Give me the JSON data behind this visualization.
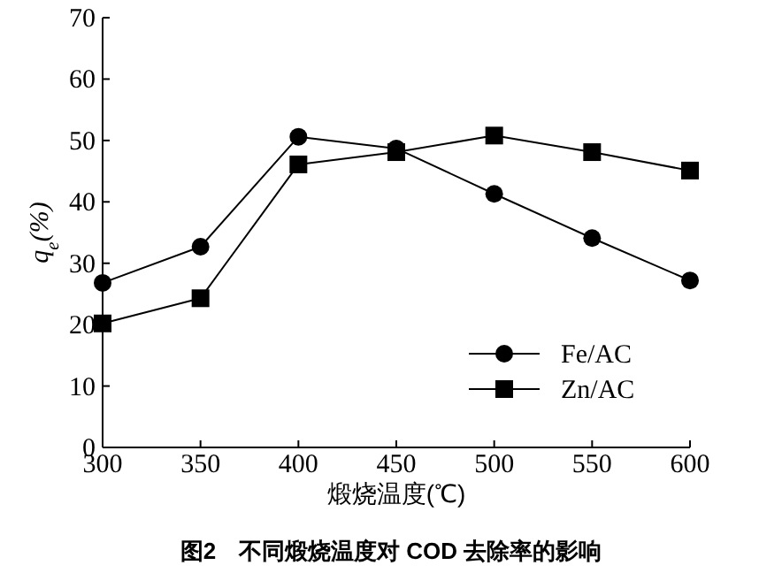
{
  "chart_data": {
    "type": "line",
    "xlabel": "煅烧温度(℃)",
    "ylabel": "q$_{e}$(%)",
    "annotations": [
      "图2　不同煅烧温度对 COD 去除率的影响"
    ],
    "x": [
      300,
      350,
      400,
      450,
      500,
      550,
      600
    ],
    "series": [
      {
        "name": "Fe/AC",
        "color": "#000000",
        "marker": "circle",
        "values": [
          26.8,
          32.7,
          50.6,
          48.7,
          41.3,
          34.1,
          27.2
        ]
      },
      {
        "name": "Zn/AC",
        "color": "#000000",
        "marker": "square",
        "values": [
          20.2,
          24.3,
          46.1,
          48.1,
          50.8,
          48.1,
          45.1
        ]
      }
    ],
    "xlim": [
      300,
      600
    ],
    "xticks": [
      300,
      350,
      400,
      450,
      500,
      550,
      600
    ],
    "ylim": [
      0,
      70
    ],
    "yticks": [
      0,
      10,
      20,
      30,
      40,
      50,
      60,
      70
    ],
    "grid": false,
    "legend": "bottom right",
    "line_style": "solid"
  }
}
